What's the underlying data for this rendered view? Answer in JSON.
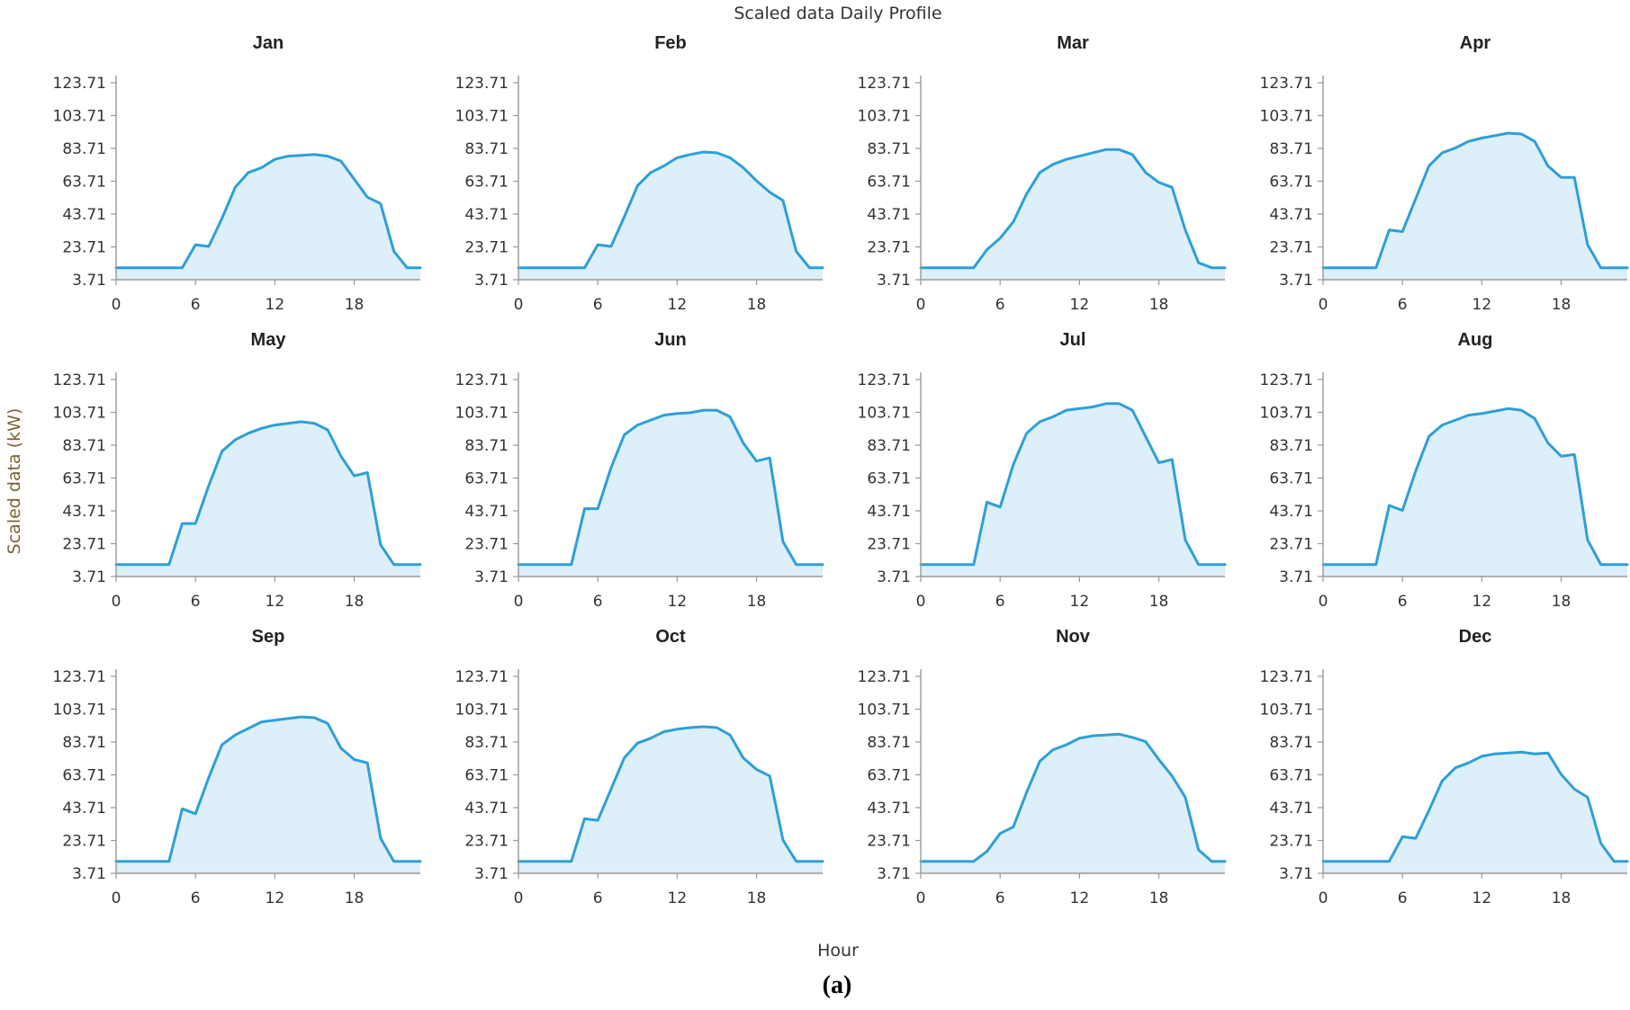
{
  "figure": {
    "title": "Scaled data Daily Profile",
    "ylabel": "Scaled data (kW)",
    "xlabel": "Hour",
    "caption": "(a)"
  },
  "colors": {
    "line": "#2e9fd8",
    "fill": "#ddeff9",
    "axis": "#999999"
  },
  "chart_data": [
    {
      "type": "area",
      "title": "Jan",
      "xlabel": "",
      "ylabel": "",
      "x": [
        0,
        1,
        2,
        3,
        4,
        5,
        6,
        7,
        8,
        9,
        10,
        11,
        12,
        13,
        14,
        15,
        16,
        17,
        18,
        19,
        20,
        21,
        22,
        23
      ],
      "values": [
        11,
        11,
        11,
        11,
        11,
        11,
        25,
        24,
        41,
        60,
        69,
        72,
        77,
        79,
        79.5,
        80,
        79,
        76,
        65,
        54,
        50,
        21,
        11,
        11
      ],
      "xticks": [
        0,
        6,
        12,
        18
      ],
      "yticks": [
        3.71,
        23.71,
        43.71,
        63.71,
        83.71,
        103.71,
        123.71
      ],
      "xlim": [
        0,
        23
      ],
      "ylim": [
        3.71,
        123.71
      ],
      "grid": false
    },
    {
      "type": "area",
      "title": "Feb",
      "xlabel": "",
      "ylabel": "",
      "x": [
        0,
        1,
        2,
        3,
        4,
        5,
        6,
        7,
        8,
        9,
        10,
        11,
        12,
        13,
        14,
        15,
        16,
        17,
        18,
        19,
        20,
        21,
        22,
        23
      ],
      "values": [
        11,
        11,
        11,
        11,
        11,
        11,
        25,
        24,
        42,
        61,
        69,
        73,
        78,
        80,
        81.5,
        81,
        78,
        72,
        64,
        57,
        52,
        21,
        11,
        11
      ],
      "xticks": [
        0,
        6,
        12,
        18
      ],
      "yticks": [
        3.71,
        23.71,
        43.71,
        63.71,
        83.71,
        103.71,
        123.71
      ],
      "xlim": [
        0,
        23
      ],
      "ylim": [
        3.71,
        123.71
      ],
      "grid": false
    },
    {
      "type": "area",
      "title": "Mar",
      "xlabel": "",
      "ylabel": "",
      "x": [
        0,
        1,
        2,
        3,
        4,
        5,
        6,
        7,
        8,
        9,
        10,
        11,
        12,
        13,
        14,
        15,
        16,
        17,
        18,
        19,
        20,
        21,
        22,
        23
      ],
      "values": [
        11,
        11,
        11,
        11,
        11,
        22,
        29,
        39,
        56,
        69,
        74,
        77,
        79,
        81,
        83,
        83,
        80,
        69,
        63,
        60,
        34,
        14,
        11,
        11
      ],
      "xticks": [
        0,
        6,
        12,
        18
      ],
      "yticks": [
        3.71,
        23.71,
        43.71,
        63.71,
        83.71,
        103.71,
        123.71
      ],
      "xlim": [
        0,
        23
      ],
      "ylim": [
        3.71,
        123.71
      ],
      "grid": false
    },
    {
      "type": "area",
      "title": "Apr",
      "xlabel": "",
      "ylabel": "",
      "x": [
        0,
        1,
        2,
        3,
        4,
        5,
        6,
        7,
        8,
        9,
        10,
        11,
        12,
        13,
        14,
        15,
        16,
        17,
        18,
        19,
        20,
        21,
        22,
        23
      ],
      "values": [
        11,
        11,
        11,
        11,
        11,
        34,
        33,
        53,
        73,
        81,
        84,
        88,
        90,
        91.5,
        93,
        92.5,
        88,
        73,
        66,
        66,
        25,
        11,
        11,
        11
      ],
      "xticks": [
        0,
        6,
        12,
        18
      ],
      "yticks": [
        3.71,
        23.71,
        43.71,
        63.71,
        83.71,
        103.71,
        123.71
      ],
      "xlim": [
        0,
        23
      ],
      "ylim": [
        3.71,
        123.71
      ],
      "grid": false
    },
    {
      "type": "area",
      "title": "May",
      "xlabel": "",
      "ylabel": "",
      "x": [
        0,
        1,
        2,
        3,
        4,
        5,
        6,
        7,
        8,
        9,
        10,
        11,
        12,
        13,
        14,
        15,
        16,
        17,
        18,
        19,
        20,
        21,
        22,
        23
      ],
      "values": [
        11,
        11,
        11,
        11,
        11,
        36,
        36,
        59,
        80,
        87,
        91,
        94,
        96,
        97,
        98,
        97,
        93,
        77,
        65,
        67,
        23,
        11,
        11,
        11
      ],
      "xticks": [
        0,
        6,
        12,
        18
      ],
      "yticks": [
        3.71,
        23.71,
        43.71,
        63.71,
        83.71,
        103.71,
        123.71
      ],
      "xlim": [
        0,
        23
      ],
      "ylim": [
        3.71,
        123.71
      ],
      "grid": false
    },
    {
      "type": "area",
      "title": "Jun",
      "xlabel": "",
      "ylabel": "",
      "x": [
        0,
        1,
        2,
        3,
        4,
        5,
        6,
        7,
        8,
        9,
        10,
        11,
        12,
        13,
        14,
        15,
        16,
        17,
        18,
        19,
        20,
        21,
        22,
        23
      ],
      "values": [
        11,
        11,
        11,
        11,
        11,
        45,
        45,
        70,
        90,
        96,
        99,
        102,
        103,
        103.5,
        105,
        105,
        101,
        85,
        74,
        76,
        25,
        11,
        11,
        11
      ],
      "xticks": [
        0,
        6,
        12,
        18
      ],
      "yticks": [
        3.71,
        23.71,
        43.71,
        63.71,
        83.71,
        103.71,
        123.71
      ],
      "xlim": [
        0,
        23
      ],
      "ylim": [
        3.71,
        123.71
      ],
      "grid": false
    },
    {
      "type": "area",
      "title": "Jul",
      "xlabel": "",
      "ylabel": "",
      "x": [
        0,
        1,
        2,
        3,
        4,
        5,
        6,
        7,
        8,
        9,
        10,
        11,
        12,
        13,
        14,
        15,
        16,
        17,
        18,
        19,
        20,
        21,
        22,
        23
      ],
      "values": [
        11,
        11,
        11,
        11,
        11,
        49,
        46,
        72,
        91,
        98,
        101,
        105,
        106,
        107,
        109,
        109,
        105,
        89,
        73,
        75,
        26,
        11,
        11,
        11
      ],
      "xticks": [
        0,
        6,
        12,
        18
      ],
      "yticks": [
        3.71,
        23.71,
        43.71,
        63.71,
        83.71,
        103.71,
        123.71
      ],
      "xlim": [
        0,
        23
      ],
      "ylim": [
        3.71,
        123.71
      ],
      "grid": false
    },
    {
      "type": "area",
      "title": "Aug",
      "xlabel": "",
      "ylabel": "",
      "x": [
        0,
        1,
        2,
        3,
        4,
        5,
        6,
        7,
        8,
        9,
        10,
        11,
        12,
        13,
        14,
        15,
        16,
        17,
        18,
        19,
        20,
        21,
        22,
        23
      ],
      "values": [
        11,
        11,
        11,
        11,
        11,
        47,
        44,
        68,
        89,
        96,
        99,
        102,
        103,
        104.5,
        106,
        105,
        100,
        85,
        77,
        78,
        26,
        11,
        11,
        11
      ],
      "xticks": [
        0,
        6,
        12,
        18
      ],
      "yticks": [
        3.71,
        23.71,
        43.71,
        63.71,
        83.71,
        103.71,
        123.71
      ],
      "xlim": [
        0,
        23
      ],
      "ylim": [
        3.71,
        123.71
      ],
      "grid": false
    },
    {
      "type": "area",
      "title": "Sep",
      "xlabel": "",
      "ylabel": "",
      "x": [
        0,
        1,
        2,
        3,
        4,
        5,
        6,
        7,
        8,
        9,
        10,
        11,
        12,
        13,
        14,
        15,
        16,
        17,
        18,
        19,
        20,
        21,
        22,
        23
      ],
      "values": [
        11,
        11,
        11,
        11,
        11,
        43,
        40,
        62,
        82,
        88,
        92,
        96,
        97,
        98,
        99,
        98.5,
        95,
        80,
        73,
        71,
        25,
        11,
        11,
        11
      ],
      "xticks": [
        0,
        6,
        12,
        18
      ],
      "yticks": [
        3.71,
        23.71,
        43.71,
        63.71,
        83.71,
        103.71,
        123.71
      ],
      "xlim": [
        0,
        23
      ],
      "ylim": [
        3.71,
        123.71
      ],
      "grid": false
    },
    {
      "type": "area",
      "title": "Oct",
      "xlabel": "",
      "ylabel": "",
      "x": [
        0,
        1,
        2,
        3,
        4,
        5,
        6,
        7,
        8,
        9,
        10,
        11,
        12,
        13,
        14,
        15,
        16,
        17,
        18,
        19,
        20,
        21,
        22,
        23
      ],
      "values": [
        11,
        11,
        11,
        11,
        11,
        37,
        36,
        55,
        74,
        83,
        86,
        90,
        91.5,
        92.5,
        93,
        92.5,
        88,
        74,
        67,
        63,
        24,
        11,
        11,
        11
      ],
      "xticks": [
        0,
        6,
        12,
        18
      ],
      "yticks": [
        3.71,
        23.71,
        43.71,
        63.71,
        83.71,
        103.71,
        123.71
      ],
      "xlim": [
        0,
        23
      ],
      "ylim": [
        3.71,
        123.71
      ],
      "grid": false
    },
    {
      "type": "area",
      "title": "Nov",
      "xlabel": "",
      "ylabel": "",
      "x": [
        0,
        1,
        2,
        3,
        4,
        5,
        6,
        7,
        8,
        9,
        10,
        11,
        12,
        13,
        14,
        15,
        16,
        17,
        18,
        19,
        20,
        21,
        22,
        23
      ],
      "values": [
        11,
        11,
        11,
        11,
        11,
        17,
        28,
        32,
        53,
        72,
        79,
        82,
        86,
        87.5,
        88,
        88.5,
        86.5,
        84,
        73,
        63,
        50,
        18,
        11,
        11
      ],
      "xticks": [
        0,
        6,
        12,
        18
      ],
      "yticks": [
        3.71,
        23.71,
        43.71,
        63.71,
        83.71,
        103.71,
        123.71
      ],
      "xlim": [
        0,
        23
      ],
      "ylim": [
        3.71,
        123.71
      ],
      "grid": false
    },
    {
      "type": "area",
      "title": "Dec",
      "xlabel": "",
      "ylabel": "",
      "x": [
        0,
        1,
        2,
        3,
        4,
        5,
        6,
        7,
        8,
        9,
        10,
        11,
        12,
        13,
        14,
        15,
        16,
        17,
        18,
        19,
        20,
        21,
        22,
        23
      ],
      "values": [
        11,
        11,
        11,
        11,
        11,
        11,
        26,
        25,
        42,
        60,
        68,
        71,
        75,
        76.5,
        77,
        77.5,
        76.5,
        77,
        64,
        55,
        50,
        22,
        11,
        11
      ],
      "xticks": [
        0,
        6,
        12,
        18
      ],
      "yticks": [
        3.71,
        23.71,
        43.71,
        63.71,
        83.71,
        103.71,
        123.71
      ],
      "xlim": [
        0,
        23
      ],
      "ylim": [
        3.71,
        123.71
      ],
      "grid": false
    }
  ]
}
